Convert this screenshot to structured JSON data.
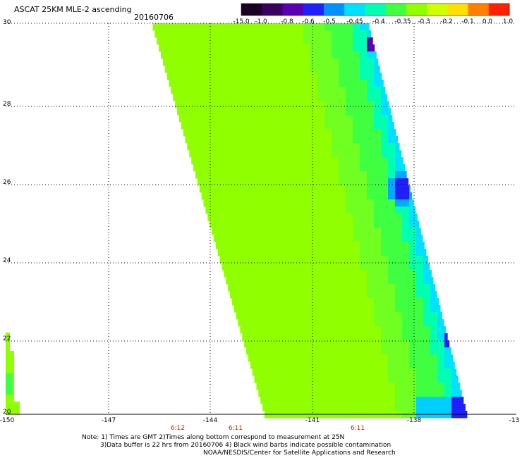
{
  "title": "ASCAT 25KM MLE-2 ascending",
  "date": "20160706",
  "colorbar": {
    "labels": [
      "-15.0",
      "-1.0",
      "-0.8",
      "-0.6",
      "-0.5",
      "-0.45",
      "-0.4",
      "-0.35",
      "-0.3",
      "-0.2",
      "-0.1",
      "0.0",
      "1.0"
    ],
    "colors": [
      "#1a0022",
      "#3a0060",
      "#5a00b0",
      "#2020ff",
      "#0090ff",
      "#00e0ff",
      "#00ffb0",
      "#40ff40",
      "#90ff00",
      "#d0ff00",
      "#ffe000",
      "#ff8000",
      "#ff2000"
    ]
  },
  "axes": {
    "x_ticks": [
      "-150",
      "-147",
      "-144",
      "-141",
      "-138",
      "-13"
    ],
    "y_ticks": [
      "30",
      "28",
      "26",
      "24",
      "22",
      "20"
    ],
    "time_labels": [
      "6:12",
      "6:11",
      "6:11"
    ]
  },
  "notes": [
    "Note: 1) Times are GMT 2)Times along bottom correspond to measurement at 25N",
    "3)Data buffer is 22 hrs from 20160706 4) Black wind barbs indicate possible contamination",
    "NOAA/NESDIS/Center for Satellite Applications and Research"
  ]
}
